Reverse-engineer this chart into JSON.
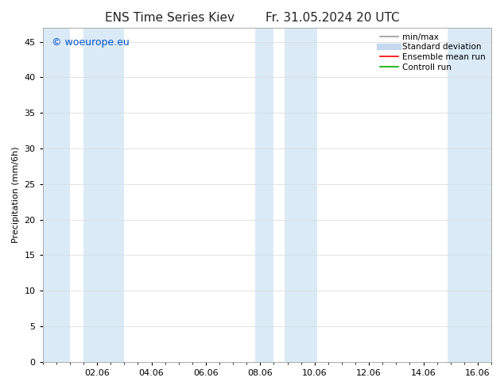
{
  "title_left": "ENS Time Series Kiev",
  "title_right": "Fr. 31.05.2024 20 UTC",
  "ylabel": "Precipitation (mm/6h)",
  "ylim": [
    0,
    47
  ],
  "yticks": [
    0,
    5,
    10,
    15,
    20,
    25,
    30,
    35,
    40,
    45
  ],
  "xlim": [
    0,
    16.5
  ],
  "xtick_labels": [
    "02.06",
    "04.06",
    "06.06",
    "08.06",
    "10.06",
    "12.06",
    "14.06",
    "16.06"
  ],
  "xtick_positions": [
    2,
    4,
    6,
    8,
    10,
    12,
    14,
    16
  ],
  "background_color": "#ffffff",
  "plot_bg_color": "#ffffff",
  "shaded_bands": [
    {
      "x_start": 0.0,
      "x_end": 1.0,
      "color": "#daeaf7"
    },
    {
      "x_start": 1.5,
      "x_end": 3.0,
      "color": "#daeaf7"
    },
    {
      "x_start": 7.8,
      "x_end": 8.5,
      "color": "#daeaf7"
    },
    {
      "x_start": 8.9,
      "x_end": 10.1,
      "color": "#daeaf7"
    },
    {
      "x_start": 14.9,
      "x_end": 16.5,
      "color": "#daeaf7"
    }
  ],
  "legend_items": [
    {
      "label": "min/max",
      "color": "#999999",
      "lw": 1.2,
      "linestyle": "-"
    },
    {
      "label": "Standard deviation",
      "color": "#c5d9ee",
      "lw": 6.0,
      "linestyle": "-"
    },
    {
      "label": "Ensemble mean run",
      "color": "#ff0000",
      "lw": 1.2,
      "linestyle": "-"
    },
    {
      "label": "Controll run",
      "color": "#00aa00",
      "lw": 1.2,
      "linestyle": "-"
    }
  ],
  "watermark": "© woeurope.eu",
  "watermark_color": "#0055cc",
  "title_fontsize": 11,
  "label_fontsize": 8,
  "tick_fontsize": 8,
  "legend_fontsize": 7.5
}
